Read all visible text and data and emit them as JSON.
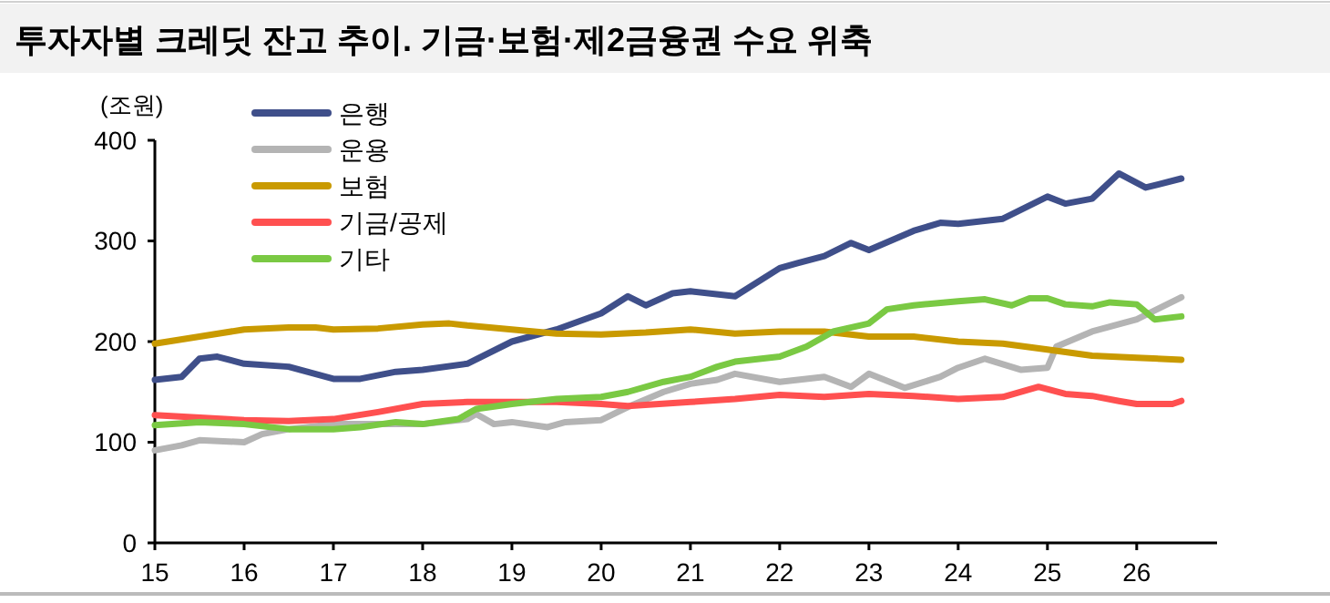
{
  "chart_data": {
    "type": "line",
    "title": "투자자별 크레딧 잔고 추이. 기금·보험·제2금융권 수요 위축",
    "ylabel": "(조원)",
    "xlim": [
      15,
      26.9
    ],
    "xticks": [
      15,
      16,
      17,
      18,
      19,
      20,
      21,
      22,
      23,
      24,
      25,
      26
    ],
    "ylim": [
      0,
      400
    ],
    "yticks": [
      0,
      100,
      200,
      300,
      400
    ],
    "grid": false,
    "legend": "top left",
    "line_style": "solid",
    "marker": "none",
    "series": [
      {
        "name": "은행",
        "color": "#3f4f8a",
        "x": [
          15,
          15.3,
          15.5,
          15.7,
          16,
          16.5,
          17,
          17.3,
          17.7,
          18,
          18.5,
          19,
          19.5,
          20,
          20.3,
          20.5,
          20.8,
          21,
          21.5,
          22,
          22.2,
          22.5,
          22.8,
          23,
          23.5,
          23.8,
          24,
          24.5,
          25,
          25.2,
          25.5,
          25.8,
          26.1,
          26.5
        ],
        "values": [
          162,
          165,
          183,
          185,
          178,
          175,
          163,
          163,
          170,
          172,
          178,
          200,
          212,
          228,
          245,
          236,
          248,
          250,
          245,
          273,
          278,
          285,
          298,
          291,
          310,
          318,
          317,
          322,
          344,
          337,
          342,
          367,
          353,
          362
        ]
      },
      {
        "name": "운용",
        "color": "#b4b4b4",
        "x": [
          15,
          15.3,
          15.5,
          16,
          16.2,
          16.5,
          17,
          17.5,
          18,
          18.5,
          18.6,
          18.8,
          19,
          19.4,
          19.6,
          20,
          20.3,
          20.7,
          21,
          21.3,
          21.5,
          22,
          22.5,
          22.8,
          23,
          23.4,
          23.8,
          24,
          24.3,
          24.7,
          25,
          25.1,
          25.5,
          26,
          26.5
        ],
        "values": [
          92,
          97,
          102,
          100,
          108,
          113,
          118,
          118,
          118,
          123,
          128,
          118,
          120,
          115,
          120,
          122,
          135,
          150,
          158,
          162,
          168,
          160,
          165,
          155,
          168,
          154,
          165,
          174,
          183,
          172,
          174,
          195,
          210,
          222,
          244
        ]
      },
      {
        "name": "보험",
        "color": "#c99a00",
        "x": [
          15,
          15.5,
          16,
          16.5,
          16.8,
          17,
          17.5,
          18,
          18.3,
          18.5,
          19,
          19.5,
          20,
          20.5,
          21,
          21.5,
          22,
          22.5,
          23,
          23.5,
          24,
          24.5,
          25,
          25.5,
          26,
          26.5
        ],
        "values": [
          198,
          205,
          212,
          214,
          214,
          212,
          213,
          217,
          218,
          216,
          212,
          208,
          207,
          209,
          212,
          208,
          210,
          210,
          205,
          205,
          200,
          198,
          192,
          186,
          184,
          182
        ]
      },
      {
        "name": "기금/공제",
        "color": "#ff5050",
        "x": [
          15,
          16,
          16.5,
          17,
          17.5,
          18,
          18.5,
          19,
          19.5,
          20,
          20.3,
          21,
          21.5,
          22,
          22.5,
          23,
          23.5,
          24,
          24.5,
          24.9,
          25.2,
          25.5,
          25.8,
          26,
          26.4,
          26.5
        ],
        "values": [
          127,
          122,
          121,
          123,
          130,
          138,
          140,
          140,
          140,
          138,
          136,
          140,
          143,
          147,
          145,
          148,
          146,
          143,
          145,
          155,
          148,
          146,
          141,
          138,
          138,
          141
        ]
      },
      {
        "name": "기타",
        "color": "#7ac943",
        "x": [
          15,
          15.5,
          16,
          16.5,
          17,
          17.3,
          17.7,
          18,
          18.4,
          18.6,
          19,
          19.5,
          20,
          20.3,
          20.7,
          21,
          21.3,
          21.5,
          22,
          22.3,
          22.6,
          23,
          23.2,
          23.5,
          24,
          24.3,
          24.6,
          24.8,
          25,
          25.2,
          25.5,
          25.7,
          26,
          26.2,
          26.5
        ],
        "values": [
          117,
          120,
          118,
          113,
          113,
          115,
          120,
          118,
          123,
          133,
          138,
          143,
          145,
          150,
          160,
          165,
          175,
          180,
          185,
          195,
          210,
          218,
          232,
          236,
          240,
          242,
          236,
          243,
          243,
          237,
          235,
          239,
          237,
          222,
          225
        ]
      }
    ]
  }
}
